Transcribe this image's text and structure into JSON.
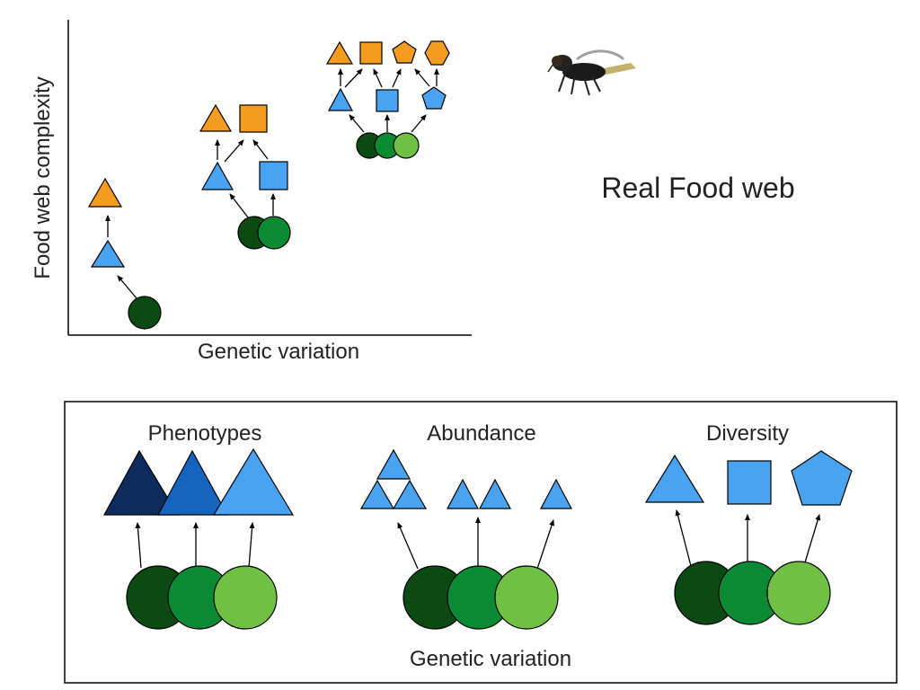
{
  "axes": {
    "y_label": "Food web complexity",
    "x_label": "Genetic variation"
  },
  "side": {
    "title": "Real Food web",
    "image": "fly-insect-photo"
  },
  "panel": {
    "columns": [
      {
        "title": "Phenotypes"
      },
      {
        "title": "Abundance"
      },
      {
        "title": "Diversity"
      }
    ],
    "footer": "Genetic variation"
  },
  "colors": {
    "plant_dark": "#0b4a12",
    "plant_mid": "#0a8a32",
    "plant_light": "#6fc045",
    "herbivore_blue": "#4aa3f0",
    "predator_orange": "#f39c1f",
    "pheno_navy": "#0d2b5c",
    "pheno_blue": "#1565c0",
    "pheno_light": "#4aa3f0"
  }
}
